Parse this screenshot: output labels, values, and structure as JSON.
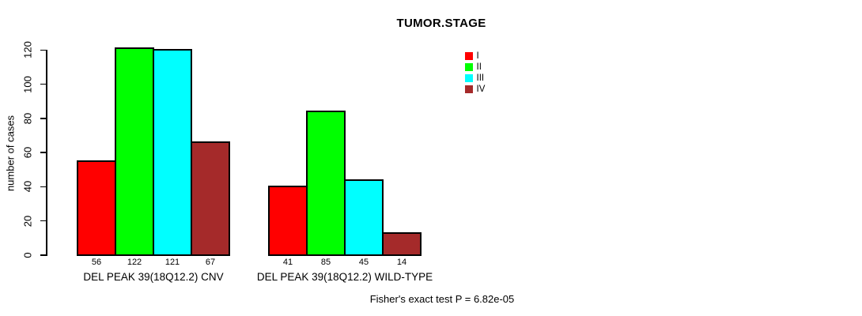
{
  "chart_data": {
    "type": "bar",
    "title": "TUMOR.STAGE",
    "ylabel": "number of cases",
    "ylim": [
      0,
      120
    ],
    "yticks": [
      0,
      20,
      40,
      60,
      80,
      100,
      120
    ],
    "grid": false,
    "legend_position": "top-right",
    "categories": [
      "DEL PEAK 39(18Q12.2) CNV",
      "DEL PEAK 39(18Q12.2) WILD-TYPE"
    ],
    "series": [
      {
        "name": "I",
        "color": "#FF0000",
        "values": [
          56,
          41
        ]
      },
      {
        "name": "II",
        "color": "#00FF00",
        "values": [
          122,
          85
        ]
      },
      {
        "name": "III",
        "color": "#00FFFF",
        "values": [
          121,
          45
        ]
      },
      {
        "name": "IV",
        "color": "#A52A2A",
        "values": [
          67,
          14
        ]
      }
    ],
    "bar_value_labels": [
      [
        56,
        122,
        121,
        67
      ],
      [
        41,
        85,
        45,
        14
      ]
    ],
    "footnote": "Fisher's exact test P = 6.82e-05"
  }
}
